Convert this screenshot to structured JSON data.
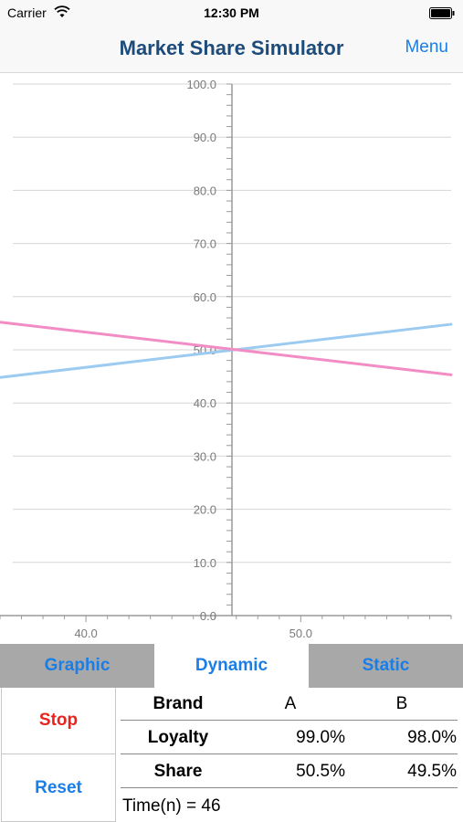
{
  "status_bar": {
    "carrier": "Carrier",
    "time": "12:30 PM"
  },
  "nav": {
    "title": "Market Share Simulator",
    "menu_label": "Menu"
  },
  "chart_data": {
    "type": "line",
    "ylim": [
      0,
      100
    ],
    "y_ticks": [
      "100.0",
      "90.0",
      "80.0",
      "70.0",
      "60.0",
      "50.0",
      "40.0",
      "30.0",
      "20.0",
      "10.0",
      "0.0"
    ],
    "y_tick_values": [
      100,
      90,
      80,
      70,
      60,
      50,
      40,
      30,
      20,
      10,
      0
    ],
    "xlim": [
      36,
      57
    ],
    "x_ticks": [
      "40.0",
      "50.0"
    ],
    "x_tick_values": [
      40,
      50
    ],
    "series": [
      {
        "color": "#9ccbf2",
        "x": [
          36,
          57
        ],
        "values": [
          44.8,
          54.8
        ]
      },
      {
        "color": "#f28cc4",
        "x": [
          36,
          57
        ],
        "values": [
          55.2,
          45.3
        ]
      }
    ]
  },
  "tabs": [
    {
      "label": "Graphic",
      "active": false
    },
    {
      "label": "Dynamic",
      "active": true
    },
    {
      "label": "Static",
      "active": false
    }
  ],
  "controls": {
    "stop_label": "Stop",
    "reset_label": "Reset"
  },
  "table": {
    "header": {
      "label": "Brand",
      "a": "A",
      "b": "B"
    },
    "rows": [
      {
        "label": "Loyalty",
        "a": "99.0%",
        "b": "98.0%"
      },
      {
        "label": "Share",
        "a": "50.5%",
        "b": "49.5%"
      }
    ]
  },
  "time_text": "Time(n) = 46",
  "colors": {
    "accent": "#1a7ee6",
    "title": "#1d4b7a",
    "stop": "#e8231f",
    "tab_inactive": "#a8a8a8"
  }
}
